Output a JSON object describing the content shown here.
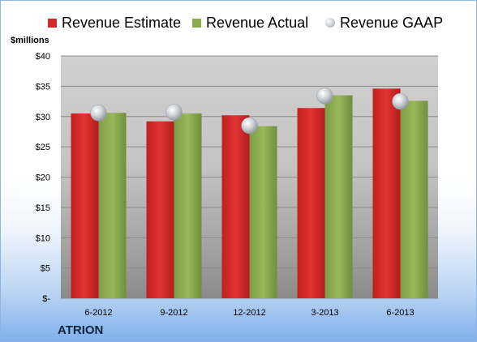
{
  "chart_data": {
    "type": "bar",
    "categories": [
      "6-2012",
      "9-2012",
      "12-2012",
      "3-2013",
      "6-2013"
    ],
    "series": [
      {
        "name": "Revenue Estimate",
        "kind": "bar",
        "color": "#d42a2a",
        "values": [
          30.5,
          29.2,
          30.2,
          31.4,
          34.6
        ]
      },
      {
        "name": "Revenue Actual",
        "kind": "bar",
        "color": "#8aaa4e",
        "values": [
          30.6,
          30.5,
          28.4,
          33.5,
          32.6
        ]
      },
      {
        "name": "Revenue GAAP",
        "kind": "marker",
        "color": "#c0c4cc",
        "values": [
          30.6,
          30.7,
          28.5,
          33.4,
          32.5
        ]
      }
    ],
    "ylabel": "$millions",
    "ylim": [
      0,
      40
    ],
    "y_ticks": [
      {
        "value": 0,
        "label": "$-"
      },
      {
        "value": 5,
        "label": "$5"
      },
      {
        "value": 10,
        "label": "$10"
      },
      {
        "value": 15,
        "label": "$15"
      },
      {
        "value": 20,
        "label": "$20"
      },
      {
        "value": 25,
        "label": "$25"
      },
      {
        "value": 30,
        "label": "$30"
      },
      {
        "value": 35,
        "label": "$35"
      },
      {
        "value": 40,
        "label": "$40"
      }
    ],
    "grid": true,
    "legend_position": "top",
    "company": "ATRION"
  }
}
